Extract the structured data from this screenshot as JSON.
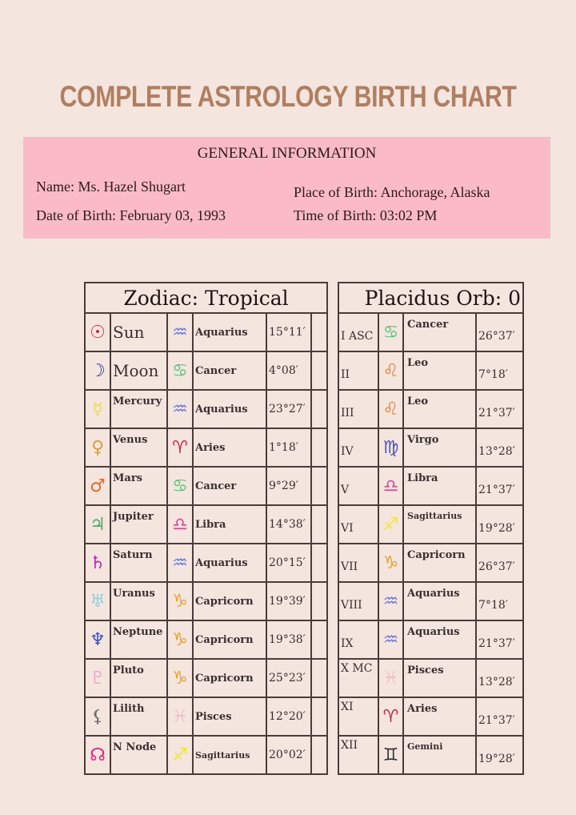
{
  "title": "COMPLETE ASTROLOGY BIRTH CHART",
  "general": {
    "heading": "GENERAL INFORMATION",
    "name": "Name: Ms. Hazel Shugart",
    "date_of_birth": "Date of Birth: February 03, 1993",
    "place_of_birth": "Place of Birth: Anchorage, Alaska",
    "time_of_birth": "Time of Birth: 03:02 PM"
  },
  "colors": {
    "title": "#b07f62",
    "info_background": "#fbbac7",
    "page_background": "#f4e6df"
  },
  "zodiac_header": "Zodiac: Tropical",
  "houses_header": "Placidus Orb: 0",
  "planets": [
    {
      "icon": "sun-icon",
      "glyph": "☉",
      "color": "#c0283a",
      "name": "Sun",
      "sign_icon": "aquarius-icon",
      "sign_glyph": "♒",
      "sign_color": "#6a78e0",
      "sign": "Aquarius",
      "degree": "15°11′"
    },
    {
      "icon": "moon-icon",
      "glyph": "☽",
      "color": "#2a3aa8",
      "name": "Moon",
      "sign_icon": "cancer-icon",
      "sign_glyph": "♋",
      "sign_color": "#5cc07a",
      "sign": "Cancer",
      "degree": "4°08′"
    },
    {
      "icon": "mercury-icon",
      "glyph": "☿",
      "color": "#e8e040",
      "name": "Mercury",
      "sign_icon": "aquarius-icon",
      "sign_glyph": "♒",
      "sign_color": "#6a78e0",
      "sign": "Aquarius",
      "degree": "23°27′"
    },
    {
      "icon": "venus-icon",
      "glyph": "♀",
      "color": "#d8a040",
      "name": "Venus",
      "sign_icon": "aries-icon",
      "sign_glyph": "♈",
      "sign_color": "#c82840",
      "sign": "Aries",
      "degree": "1°18′"
    },
    {
      "icon": "mars-icon",
      "glyph": "♂",
      "color": "#e86a28",
      "name": "Mars",
      "sign_icon": "cancer-icon",
      "sign_glyph": "♋",
      "sign_color": "#5cc07a",
      "sign": "Cancer",
      "degree": "9°29′"
    },
    {
      "icon": "jupiter-icon",
      "glyph": "♃",
      "color": "#40b060",
      "name": "Jupiter",
      "sign_icon": "libra-icon",
      "sign_glyph": "♎",
      "sign_color": "#e04890",
      "sign": "Libra",
      "degree": "14°38′"
    },
    {
      "icon": "saturn-icon",
      "glyph": "♄",
      "color": "#c020c0",
      "name": "Saturn",
      "sign_icon": "aquarius-icon",
      "sign_glyph": "♒",
      "sign_color": "#6a78e0",
      "sign": "Aquarius",
      "degree": "20°15′"
    },
    {
      "icon": "uranus-icon",
      "glyph": "♅",
      "color": "#90d0e0",
      "name": "Uranus",
      "sign_icon": "capricorn-icon",
      "sign_glyph": "♑",
      "sign_color": "#f0a020",
      "sign": "Capricorn",
      "degree": "19°39′"
    },
    {
      "icon": "neptune-icon",
      "glyph": "♆",
      "color": "#3a50d0",
      "name": "Neptune",
      "sign_icon": "capricorn-icon",
      "sign_glyph": "♑",
      "sign_color": "#f0a020",
      "sign": "Capricorn",
      "degree": "19°38′"
    },
    {
      "icon": "pluto-icon",
      "glyph": "♇",
      "color": "#f0a8c8",
      "name": "Pluto",
      "sign_icon": "capricorn-icon",
      "sign_glyph": "♑",
      "sign_color": "#f0a020",
      "sign": "Capricorn",
      "degree": "25°23′"
    },
    {
      "icon": "lilith-icon",
      "glyph": "⚸",
      "color": "#707070",
      "name": "Lilith",
      "sign_icon": "pisces-icon",
      "sign_glyph": "♓",
      "sign_color": "#f0c0c8",
      "sign": "Pisces",
      "degree": "12°20′"
    },
    {
      "icon": "north-node-icon",
      "glyph": "☊",
      "color": "#e82080",
      "name": "N Node",
      "sign_icon": "sagittarius-icon",
      "sign_glyph": "♐",
      "sign_color": "#f0e830",
      "sign": "Sagittarius",
      "degree": "20°02′"
    }
  ],
  "houses": [
    {
      "house": "I ASC",
      "sign_icon": "cancer-icon",
      "sign_glyph": "♋",
      "sign_color": "#5cc07a",
      "sign": "Cancer",
      "degree": "26°37′"
    },
    {
      "house": "II",
      "sign_icon": "leo-icon",
      "sign_glyph": "♌",
      "sign_color": "#f08030",
      "sign": "Leo",
      "degree": "7°18′"
    },
    {
      "house": "III",
      "sign_icon": "leo-icon",
      "sign_glyph": "♌",
      "sign_color": "#f08030",
      "sign": "Leo",
      "degree": "21°37′"
    },
    {
      "house": "IV",
      "sign_icon": "virgo-icon",
      "sign_glyph": "♍",
      "sign_color": "#4a50c0",
      "sign": "Virgo",
      "degree": "13°28′"
    },
    {
      "house": "V",
      "sign_icon": "libra-icon",
      "sign_glyph": "♎",
      "sign_color": "#e04890",
      "sign": "Libra",
      "degree": "21°37′"
    },
    {
      "house": "VI",
      "sign_icon": "sagittarius-icon",
      "sign_glyph": "♐",
      "sign_color": "#f0e830",
      "sign": "Sagittarius",
      "degree": "19°28′"
    },
    {
      "house": "VII",
      "sign_icon": "capricorn-icon",
      "sign_glyph": "♑",
      "sign_color": "#f0a020",
      "sign": "Capricorn",
      "degree": "26°37′"
    },
    {
      "house": "VIII",
      "sign_icon": "aquarius-icon",
      "sign_glyph": "♒",
      "sign_color": "#6a78e0",
      "sign": "Aquarius",
      "degree": "7°18′"
    },
    {
      "house": "IX",
      "sign_icon": "aquarius-icon",
      "sign_glyph": "♒",
      "sign_color": "#6a78e0",
      "sign": "Aquarius",
      "degree": "21°37′"
    },
    {
      "house": "X MC",
      "sign_icon": "pisces-icon",
      "sign_glyph": "♓",
      "sign_color": "#f0c0c8",
      "sign": "Pisces",
      "degree": "13°28′"
    },
    {
      "house": "XI",
      "sign_icon": "aries-icon",
      "sign_glyph": "♈",
      "sign_color": "#c82840",
      "sign": "Aries",
      "degree": "21°37′"
    },
    {
      "house": "XII",
      "sign_icon": "gemini-icon",
      "sign_glyph": "♊",
      "sign_color": "#303030",
      "sign": "Gemini",
      "degree": "19°28′"
    }
  ]
}
